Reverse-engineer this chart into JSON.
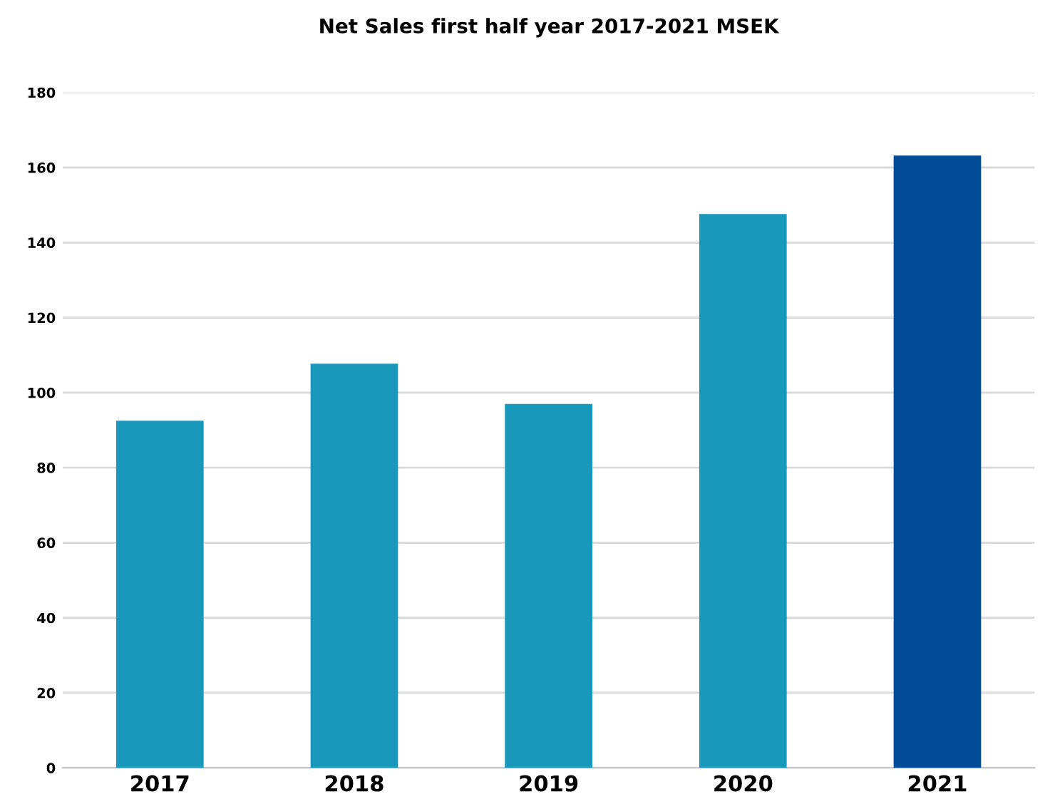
{
  "chart_data": {
    "type": "bar",
    "title": "Net Sales first half year 2017-2021 MSEK",
    "categories": [
      "2017",
      "2018",
      "2019",
      "2020",
      "2021"
    ],
    "values": [
      92.5,
      107.7,
      97,
      147.6,
      163.2
    ],
    "colors": [
      "#1899bb",
      "#1899bb",
      "#1899bb",
      "#1899bb",
      "#004c97"
    ],
    "ylim": [
      0,
      180
    ],
    "yticks": [
      0,
      20,
      40,
      60,
      80,
      100,
      120,
      140,
      160,
      180
    ],
    "grid": "y"
  }
}
